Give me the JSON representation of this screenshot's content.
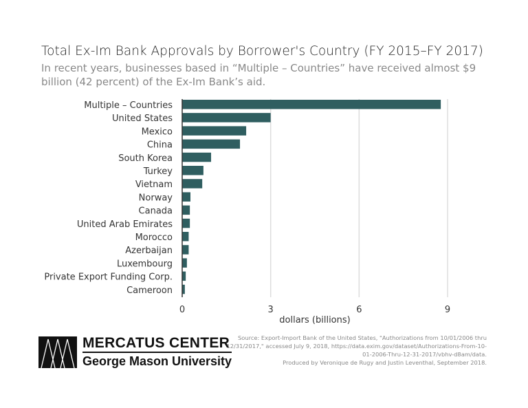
{
  "chart_data": {
    "type": "bar",
    "orientation": "horizontal",
    "title": "Total Ex-Im Bank Approvals by Borrower's Country (FY 2015–FY 2017)",
    "subtitle": "In recent years, businesses based in “Multiple – Countries” have received almost $9 billion (42 percent) of the Ex-Im Bank’s aid.",
    "categories": [
      "Multiple – Countries",
      "United States",
      "Mexico",
      "China",
      "South Korea",
      "Turkey",
      "Vietnam",
      "Norway",
      "Canada",
      "United Arab Emirates",
      "Morocco",
      "Azerbaijan",
      "Luxembourg",
      "Private Export Funding Corp.",
      "Cameroon"
    ],
    "values": [
      8.77,
      3.0,
      2.17,
      1.96,
      0.98,
      0.72,
      0.68,
      0.28,
      0.26,
      0.26,
      0.22,
      0.22,
      0.16,
      0.12,
      0.09
    ],
    "xlabel": "dollars (billions)",
    "xlim": [
      0,
      9
    ],
    "xticks": [
      "0",
      "3",
      "6",
      "9"
    ],
    "grid": true,
    "bar_color": "#2f5e60"
  },
  "footer": {
    "source": "Source: Export-Import Bank of the United States, \"Authorizations from 10/01/2006 thru 12/31/2017,\" accessed July 9, 2018, https://data.exim.gov/dataset/Authorizations-From-10-01-2006-Thru-12-31-2017/vbhv-d8am/data.",
    "credit": "Produced by Veronique de Rugy and Justin Leventhal, September 2018.",
    "logo_line1": "MERCATUS CENTER",
    "logo_line2": "George Mason University"
  }
}
